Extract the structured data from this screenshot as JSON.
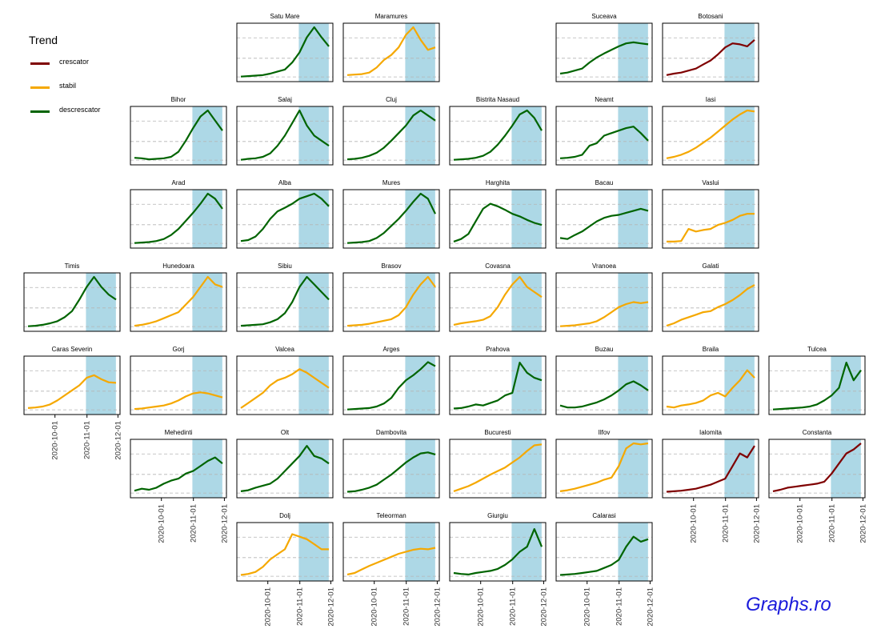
{
  "legend": {
    "title": "Trend",
    "items": [
      {
        "label": "crescator",
        "color": "#7f0000"
      },
      {
        "label": "stabil",
        "color": "#f5a800"
      },
      {
        "label": "descrescator",
        "color": "#006400"
      }
    ]
  },
  "watermark": "Graphs.ro",
  "chart_data": {
    "type": "line",
    "description_axis": "shared x axis, dates",
    "x_ticks": [
      "2020-10-01",
      "2020-11-01",
      "2020-12-01"
    ],
    "x_range": [
      "2020-09-01",
      "2020-12-03"
    ],
    "highlight_range": [
      "2020-10-31",
      "2020-11-29"
    ],
    "highlight_color": "#add8e6",
    "trend_colors": {
      "crescator": "#7f0000",
      "stabil": "#f5a800",
      "descrescator": "#006400"
    },
    "panels": [
      {
        "name": "Satu Mare",
        "trend": "descrescator",
        "row": 0,
        "col": 2,
        "values": [
          0.02,
          0.03,
          0.04,
          0.05,
          0.08,
          0.12,
          0.16,
          0.3,
          0.5,
          0.8,
          1.0,
          0.8,
          0.62
        ]
      },
      {
        "name": "Maramures",
        "trend": "stabil",
        "row": 0,
        "col": 3,
        "values": [
          0.05,
          0.06,
          0.07,
          0.1,
          0.2,
          0.35,
          0.45,
          0.6,
          0.85,
          1.0,
          0.75,
          0.55,
          0.6
        ]
      },
      {
        "name": "Suceava",
        "trend": "descrescator",
        "row": 0,
        "col": 5,
        "values": [
          0.08,
          0.1,
          0.14,
          0.18,
          0.3,
          0.4,
          0.48,
          0.55,
          0.62,
          0.68,
          0.7,
          0.68,
          0.66
        ]
      },
      {
        "name": "Botosani",
        "trend": "crescator",
        "row": 0,
        "col": 6,
        "values": [
          0.05,
          0.08,
          0.1,
          0.14,
          0.18,
          0.26,
          0.34,
          0.46,
          0.6,
          0.68,
          0.66,
          0.62,
          0.75
        ]
      },
      {
        "name": "Bihor",
        "trend": "descrescator",
        "row": 1,
        "col": 1,
        "values": [
          0.06,
          0.05,
          0.03,
          0.04,
          0.05,
          0.08,
          0.18,
          0.4,
          0.65,
          0.88,
          1.0,
          0.8,
          0.6
        ]
      },
      {
        "name": "Salaj",
        "trend": "descrescator",
        "row": 1,
        "col": 2,
        "values": [
          0.02,
          0.04,
          0.05,
          0.08,
          0.15,
          0.3,
          0.5,
          0.75,
          1.0,
          0.7,
          0.5,
          0.4,
          0.3
        ]
      },
      {
        "name": "Cluj",
        "trend": "descrescator",
        "row": 1,
        "col": 3,
        "values": [
          0.03,
          0.04,
          0.06,
          0.1,
          0.16,
          0.26,
          0.4,
          0.55,
          0.7,
          0.9,
          1.0,
          0.9,
          0.8
        ]
      },
      {
        "name": "Bistrita Nasaud",
        "trend": "descrescator",
        "row": 1,
        "col": 4,
        "values": [
          0.02,
          0.03,
          0.04,
          0.06,
          0.1,
          0.18,
          0.32,
          0.5,
          0.7,
          0.92,
          1.0,
          0.85,
          0.6
        ]
      },
      {
        "name": "Neamt",
        "trend": "descrescator",
        "row": 1,
        "col": 5,
        "values": [
          0.05,
          0.06,
          0.08,
          0.12,
          0.3,
          0.35,
          0.5,
          0.55,
          0.6,
          0.65,
          0.68,
          0.55,
          0.4
        ]
      },
      {
        "name": "Iasi",
        "trend": "stabil",
        "row": 1,
        "col": 6,
        "values": [
          0.05,
          0.08,
          0.12,
          0.18,
          0.26,
          0.36,
          0.46,
          0.58,
          0.7,
          0.82,
          0.92,
          1.0,
          0.98
        ]
      },
      {
        "name": "Arad",
        "trend": "descrescator",
        "row": 2,
        "col": 1,
        "values": [
          0.02,
          0.03,
          0.04,
          0.06,
          0.1,
          0.18,
          0.3,
          0.46,
          0.62,
          0.8,
          1.0,
          0.9,
          0.7
        ]
      },
      {
        "name": "Alba",
        "trend": "descrescator",
        "row": 2,
        "col": 2,
        "values": [
          0.06,
          0.08,
          0.15,
          0.3,
          0.5,
          0.65,
          0.72,
          0.8,
          0.9,
          0.95,
          1.0,
          0.9,
          0.75
        ]
      },
      {
        "name": "Mures",
        "trend": "descrescator",
        "row": 2,
        "col": 3,
        "values": [
          0.02,
          0.03,
          0.04,
          0.06,
          0.12,
          0.22,
          0.36,
          0.5,
          0.66,
          0.84,
          1.0,
          0.9,
          0.6
        ]
      },
      {
        "name": "Harghita",
        "trend": "descrescator",
        "row": 2,
        "col": 4,
        "values": [
          0.05,
          0.1,
          0.2,
          0.45,
          0.7,
          0.8,
          0.75,
          0.68,
          0.6,
          0.55,
          0.48,
          0.42,
          0.38
        ]
      },
      {
        "name": "Bacau",
        "trend": "descrescator",
        "row": 2,
        "col": 5,
        "values": [
          0.12,
          0.1,
          0.18,
          0.25,
          0.35,
          0.45,
          0.52,
          0.56,
          0.58,
          0.62,
          0.66,
          0.7,
          0.66
        ]
      },
      {
        "name": "Vaslui",
        "trend": "stabil",
        "row": 2,
        "col": 6,
        "values": [
          0.05,
          0.05,
          0.06,
          0.3,
          0.25,
          0.28,
          0.3,
          0.38,
          0.42,
          0.48,
          0.56,
          0.6,
          0.6
        ]
      },
      {
        "name": "Timis",
        "trend": "descrescator",
        "row": 3,
        "col": 0,
        "values": [
          0.02,
          0.03,
          0.05,
          0.08,
          0.12,
          0.2,
          0.32,
          0.55,
          0.8,
          1.0,
          0.8,
          0.65,
          0.55
        ]
      },
      {
        "name": "Hunedoara",
        "trend": "stabil",
        "row": 3,
        "col": 1,
        "values": [
          0.03,
          0.05,
          0.08,
          0.12,
          0.18,
          0.24,
          0.3,
          0.45,
          0.6,
          0.8,
          1.0,
          0.85,
          0.8
        ]
      },
      {
        "name": "Sibiu",
        "trend": "descrescator",
        "row": 3,
        "col": 2,
        "values": [
          0.03,
          0.04,
          0.05,
          0.06,
          0.1,
          0.16,
          0.28,
          0.5,
          0.8,
          1.0,
          0.85,
          0.7,
          0.55
        ]
      },
      {
        "name": "Brasov",
        "trend": "stabil",
        "row": 3,
        "col": 3,
        "values": [
          0.03,
          0.04,
          0.05,
          0.07,
          0.1,
          0.13,
          0.16,
          0.24,
          0.4,
          0.65,
          0.85,
          1.0,
          0.8
        ]
      },
      {
        "name": "Covasna",
        "trend": "stabil",
        "row": 3,
        "col": 4,
        "values": [
          0.05,
          0.08,
          0.1,
          0.12,
          0.15,
          0.22,
          0.4,
          0.65,
          0.85,
          1.0,
          0.8,
          0.7,
          0.6
        ]
      },
      {
        "name": "Vranoea",
        "trend": "stabil",
        "row": 3,
        "col": 5,
        "values": [
          0.02,
          0.03,
          0.04,
          0.06,
          0.08,
          0.12,
          0.2,
          0.3,
          0.4,
          0.46,
          0.5,
          0.48,
          0.5
        ]
      },
      {
        "name": "Galati",
        "trend": "stabil",
        "row": 3,
        "col": 6,
        "values": [
          0.03,
          0.08,
          0.15,
          0.2,
          0.25,
          0.3,
          0.32,
          0.4,
          0.46,
          0.54,
          0.64,
          0.76,
          0.84
        ]
      },
      {
        "name": "Caras Severin",
        "trend": "stabil",
        "row": 4,
        "col": 0,
        "values": [
          0.05,
          0.06,
          0.08,
          0.12,
          0.2,
          0.3,
          0.4,
          0.5,
          0.65,
          0.7,
          0.62,
          0.56,
          0.55
        ]
      },
      {
        "name": "Gorj",
        "trend": "stabil",
        "row": 4,
        "col": 1,
        "values": [
          0.03,
          0.04,
          0.06,
          0.08,
          0.1,
          0.14,
          0.2,
          0.28,
          0.34,
          0.36,
          0.34,
          0.3,
          0.26
        ]
      },
      {
        "name": "Valcea",
        "trend": "stabil",
        "row": 4,
        "col": 2,
        "values": [
          0.05,
          0.15,
          0.25,
          0.35,
          0.5,
          0.6,
          0.65,
          0.72,
          0.82,
          0.75,
          0.65,
          0.55,
          0.45
        ]
      },
      {
        "name": "Arges",
        "trend": "descrescator",
        "row": 4,
        "col": 3,
        "values": [
          0.02,
          0.03,
          0.04,
          0.05,
          0.08,
          0.14,
          0.25,
          0.45,
          0.6,
          0.7,
          0.82,
          0.96,
          0.88
        ]
      },
      {
        "name": "Prahova",
        "trend": "descrescator",
        "row": 4,
        "col": 4,
        "values": [
          0.04,
          0.05,
          0.08,
          0.12,
          0.1,
          0.15,
          0.2,
          0.3,
          0.35,
          0.95,
          0.75,
          0.65,
          0.6
        ]
      },
      {
        "name": "Buzau",
        "trend": "descrescator",
        "row": 4,
        "col": 5,
        "values": [
          0.1,
          0.06,
          0.06,
          0.08,
          0.12,
          0.16,
          0.22,
          0.3,
          0.4,
          0.52,
          0.58,
          0.5,
          0.4
        ]
      },
      {
        "name": "Braila",
        "trend": "stabil",
        "row": 4,
        "col": 6,
        "values": [
          0.08,
          0.06,
          0.1,
          0.12,
          0.15,
          0.2,
          0.3,
          0.35,
          0.28,
          0.45,
          0.6,
          0.8,
          0.65
        ]
      },
      {
        "name": "Tulcea",
        "trend": "descrescator",
        "row": 4,
        "col": 7,
        "values": [
          0.02,
          0.03,
          0.04,
          0.05,
          0.06,
          0.08,
          0.12,
          0.2,
          0.3,
          0.45,
          0.95,
          0.6,
          0.8
        ]
      },
      {
        "name": "Mehedinti",
        "trend": "descrescator",
        "row": 5,
        "col": 1,
        "values": [
          0.06,
          0.1,
          0.08,
          0.12,
          0.2,
          0.26,
          0.3,
          0.4,
          0.45,
          0.55,
          0.65,
          0.72,
          0.6
        ]
      },
      {
        "name": "Olt",
        "trend": "descrescator",
        "row": 5,
        "col": 2,
        "values": [
          0.05,
          0.07,
          0.12,
          0.16,
          0.2,
          0.3,
          0.45,
          0.6,
          0.75,
          0.95,
          0.75,
          0.7,
          0.6
        ]
      },
      {
        "name": "Dambovita",
        "trend": "descrescator",
        "row": 5,
        "col": 3,
        "values": [
          0.04,
          0.05,
          0.08,
          0.12,
          0.18,
          0.28,
          0.38,
          0.5,
          0.62,
          0.72,
          0.8,
          0.82,
          0.78
        ]
      },
      {
        "name": "Bucuresti",
        "trend": "stabil",
        "row": 5,
        "col": 4,
        "values": [
          0.05,
          0.1,
          0.15,
          0.22,
          0.3,
          0.38,
          0.45,
          0.52,
          0.62,
          0.72,
          0.85,
          0.96,
          0.98
        ]
      },
      {
        "name": "Ilfov",
        "trend": "stabil",
        "row": 5,
        "col": 5,
        "values": [
          0.05,
          0.07,
          0.1,
          0.14,
          0.18,
          0.22,
          0.28,
          0.32,
          0.55,
          0.9,
          1.0,
          0.98,
          1.0
        ]
      },
      {
        "name": "Ialomita",
        "trend": "crescator",
        "row": 5,
        "col": 6,
        "values": [
          0.04,
          0.05,
          0.06,
          0.08,
          0.1,
          0.14,
          0.18,
          0.24,
          0.3,
          0.55,
          0.8,
          0.72,
          0.95
        ]
      },
      {
        "name": "Constanta",
        "trend": "crescator",
        "row": 5,
        "col": 7,
        "values": [
          0.05,
          0.08,
          0.12,
          0.14,
          0.16,
          0.18,
          0.2,
          0.24,
          0.4,
          0.6,
          0.8,
          0.88,
          1.0
        ]
      },
      {
        "name": "Dolj",
        "trend": "stabil",
        "row": 6,
        "col": 2,
        "values": [
          0.04,
          0.06,
          0.1,
          0.2,
          0.35,
          0.45,
          0.55,
          0.85,
          0.8,
          0.75,
          0.65,
          0.55,
          0.55
        ]
      },
      {
        "name": "Teleorman",
        "trend": "stabil",
        "row": 6,
        "col": 3,
        "values": [
          0.05,
          0.08,
          0.15,
          0.22,
          0.28,
          0.34,
          0.4,
          0.46,
          0.5,
          0.54,
          0.56,
          0.55,
          0.58
        ]
      },
      {
        "name": "Giurgiu",
        "trend": "descrescator",
        "row": 6,
        "col": 4,
        "values": [
          0.08,
          0.06,
          0.05,
          0.08,
          0.1,
          0.12,
          0.16,
          0.24,
          0.35,
          0.5,
          0.6,
          0.95,
          0.6
        ]
      },
      {
        "name": "Calarasi",
        "trend": "descrescator",
        "row": 6,
        "col": 5,
        "values": [
          0.04,
          0.05,
          0.06,
          0.08,
          0.1,
          0.12,
          0.18,
          0.24,
          0.34,
          0.6,
          0.8,
          0.7,
          0.75
        ]
      }
    ],
    "axis_tick_rows": [
      {
        "below_row": 4,
        "cols": [
          0
        ]
      },
      {
        "below_row": 5,
        "cols": [
          1,
          6,
          7
        ]
      },
      {
        "below_row": 6,
        "cols": [
          2,
          3,
          4,
          5
        ]
      }
    ]
  }
}
